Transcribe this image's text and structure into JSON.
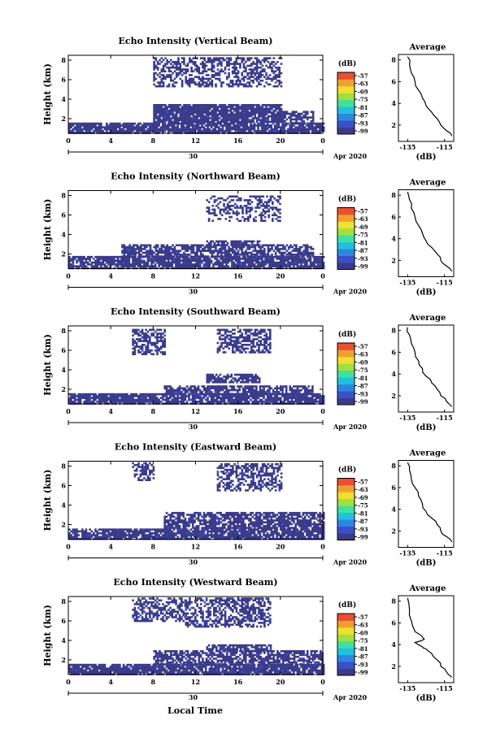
{
  "figure": {
    "xlabel_bottom": "Local Time",
    "colorbar_unit": "(dB)",
    "colorbar_ticks": [
      "-57",
      "-63",
      "-69",
      "-75",
      "-81",
      "-87",
      "-93",
      "-99"
    ],
    "colorbar_colors": [
      "#3b3b8a",
      "#3b50c8",
      "#2f86e0",
      "#20c0e0",
      "#40e0a0",
      "#a0e040",
      "#f0e030",
      "#f0a030",
      "#e85030"
    ],
    "date_text": "Apr 2020",
    "day_label": "30",
    "time_ticks": [
      "0",
      "4",
      "8",
      "12",
      "16",
      "20",
      "0"
    ],
    "avg_title": "Average",
    "avg_xlabel": "(dB)",
    "avg_xticks": [
      "-135",
      "-115"
    ],
    "height_ticks": [
      "8",
      "6",
      "4",
      "2"
    ],
    "ylabel": "Height (km)"
  },
  "chart_data": [
    {
      "type": "heatmap",
      "title": "Echo Intensity (Vertical Beam)",
      "xlabel": "Local Time",
      "ylabel": "Height (km)",
      "xlim": [
        0,
        24
      ],
      "ylim": [
        0.5,
        8.5
      ],
      "clim": [
        -99,
        -57
      ],
      "regions": [
        {
          "x0": 0,
          "x1": 24,
          "y0": 0.6,
          "y1": 1.6,
          "density": 0.85
        },
        {
          "x0": 8,
          "x1": 20,
          "y0": 1.6,
          "y1": 3.5,
          "density": 0.9
        },
        {
          "x0": 20,
          "x1": 23,
          "y0": 1.6,
          "y1": 2.8,
          "density": 0.6
        },
        {
          "x0": 8,
          "x1": 20,
          "y0": 5.4,
          "y1": 8.3,
          "density": 0.5
        }
      ],
      "average": {
        "xlim": [
          -140,
          -110
        ],
        "ylim": [
          0.5,
          8.5
        ],
        "x": [
          -111,
          -114,
          -117,
          -119,
          -122,
          -125,
          -127,
          -129,
          -131,
          -133,
          -134,
          -135
        ],
        "y": [
          1.0,
          1.5,
          2.0,
          2.6,
          3.2,
          3.8,
          4.5,
          5.2,
          6.0,
          6.8,
          7.6,
          8.3
        ]
      }
    },
    {
      "type": "heatmap",
      "title": "Echo Intensity (Northward Beam)",
      "xlabel": "Local Time",
      "ylabel": "Height (km)",
      "xlim": [
        0,
        24
      ],
      "ylim": [
        0.5,
        8.5
      ],
      "clim": [
        -99,
        -57
      ],
      "regions": [
        {
          "x0": 0,
          "x1": 24,
          "y0": 0.6,
          "y1": 1.8,
          "density": 0.85
        },
        {
          "x0": 5,
          "x1": 23,
          "y0": 1.8,
          "y1": 3.0,
          "density": 0.7
        },
        {
          "x0": 13,
          "x1": 18,
          "y0": 3.0,
          "y1": 3.4,
          "density": 0.7
        },
        {
          "x0": 13,
          "x1": 20,
          "y0": 5.5,
          "y1": 8.0,
          "density": 0.4
        }
      ],
      "average": {
        "xlim": [
          -140,
          -110
        ],
        "ylim": [
          0.5,
          8.5
        ],
        "x": [
          -111,
          -114,
          -117,
          -119,
          -122,
          -125,
          -127,
          -129,
          -131,
          -133,
          -134,
          -135
        ],
        "y": [
          1.0,
          1.5,
          2.0,
          2.6,
          3.2,
          3.8,
          4.5,
          5.2,
          6.0,
          6.8,
          7.6,
          8.3
        ]
      }
    },
    {
      "type": "heatmap",
      "title": "Echo Intensity (Southward Beam)",
      "xlabel": "Local Time",
      "ylabel": "Height (km)",
      "xlim": [
        0,
        24
      ],
      "ylim": [
        0.5,
        8.5
      ],
      "clim": [
        -99,
        -57
      ],
      "regions": [
        {
          "x0": 0,
          "x1": 24,
          "y0": 0.6,
          "y1": 1.6,
          "density": 0.85
        },
        {
          "x0": 9,
          "x1": 23,
          "y0": 1.6,
          "y1": 2.4,
          "density": 0.75
        },
        {
          "x0": 13,
          "x1": 18,
          "y0": 2.8,
          "y1": 3.6,
          "density": 0.75
        },
        {
          "x0": 6,
          "x1": 9,
          "y0": 5.6,
          "y1": 8.2,
          "density": 0.6
        },
        {
          "x0": 14,
          "x1": 19,
          "y0": 5.8,
          "y1": 8.2,
          "density": 0.6
        }
      ],
      "average": {
        "xlim": [
          -140,
          -110
        ],
        "ylim": [
          0.5,
          8.5
        ],
        "x": [
          -111,
          -114,
          -117,
          -119,
          -122,
          -125,
          -127,
          -129,
          -131,
          -133,
          -134,
          -135
        ],
        "y": [
          1.0,
          1.5,
          2.0,
          2.6,
          3.2,
          3.8,
          4.5,
          5.2,
          6.0,
          6.8,
          7.6,
          8.3
        ]
      }
    },
    {
      "type": "heatmap",
      "title": "Echo Intensity (Eastward Beam)",
      "xlabel": "Local Time",
      "ylabel": "Height (km)",
      "xlim": [
        0,
        24
      ],
      "ylim": [
        0.5,
        8.5
      ],
      "clim": [
        -99,
        -57
      ],
      "regions": [
        {
          "x0": 0,
          "x1": 24,
          "y0": 0.6,
          "y1": 1.6,
          "density": 0.85
        },
        {
          "x0": 9,
          "x1": 24,
          "y0": 1.6,
          "y1": 3.3,
          "density": 0.75
        },
        {
          "x0": 6,
          "x1": 8,
          "y0": 6.5,
          "y1": 8.4,
          "density": 0.5
        },
        {
          "x0": 14,
          "x1": 20,
          "y0": 5.6,
          "y1": 8.3,
          "density": 0.5
        }
      ],
      "average": {
        "xlim": [
          -140,
          -110
        ],
        "ylim": [
          0.5,
          8.5
        ],
        "x": [
          -111,
          -114,
          -117,
          -119,
          -122,
          -125,
          -127,
          -129,
          -131,
          -133,
          -134,
          -135
        ],
        "y": [
          1.0,
          1.5,
          2.0,
          2.6,
          3.2,
          3.8,
          4.5,
          5.2,
          6.0,
          6.8,
          7.6,
          8.3
        ]
      }
    },
    {
      "type": "heatmap",
      "title": "Echo Intensity (Westward Beam)",
      "xlabel": "Local Time",
      "ylabel": "Height (km)",
      "xlim": [
        0,
        24
      ],
      "ylim": [
        0.5,
        8.5
      ],
      "clim": [
        -99,
        -57
      ],
      "regions": [
        {
          "x0": 0,
          "x1": 24,
          "y0": 0.6,
          "y1": 1.6,
          "density": 0.85
        },
        {
          "x0": 8,
          "x1": 24,
          "y0": 1.6,
          "y1": 3.0,
          "density": 0.7
        },
        {
          "x0": 13,
          "x1": 19,
          "y0": 3.0,
          "y1": 3.6,
          "density": 0.7
        },
        {
          "x0": 6,
          "x1": 11,
          "y0": 6.0,
          "y1": 8.4,
          "density": 0.55
        },
        {
          "x0": 11,
          "x1": 19,
          "y0": 5.5,
          "y1": 8.4,
          "density": 0.55
        }
      ],
      "average": {
        "xlim": [
          -140,
          -110
        ],
        "ylim": [
          0.5,
          8.5
        ],
        "x": [
          -111,
          -114,
          -117,
          -119,
          -122,
          -125,
          -127,
          -131,
          -126,
          -131,
          -133,
          -134,
          -135
        ],
        "y": [
          1.0,
          1.5,
          2.0,
          2.6,
          3.2,
          3.6,
          3.8,
          4.2,
          4.5,
          5.2,
          6.2,
          7.2,
          8.3
        ]
      }
    }
  ]
}
